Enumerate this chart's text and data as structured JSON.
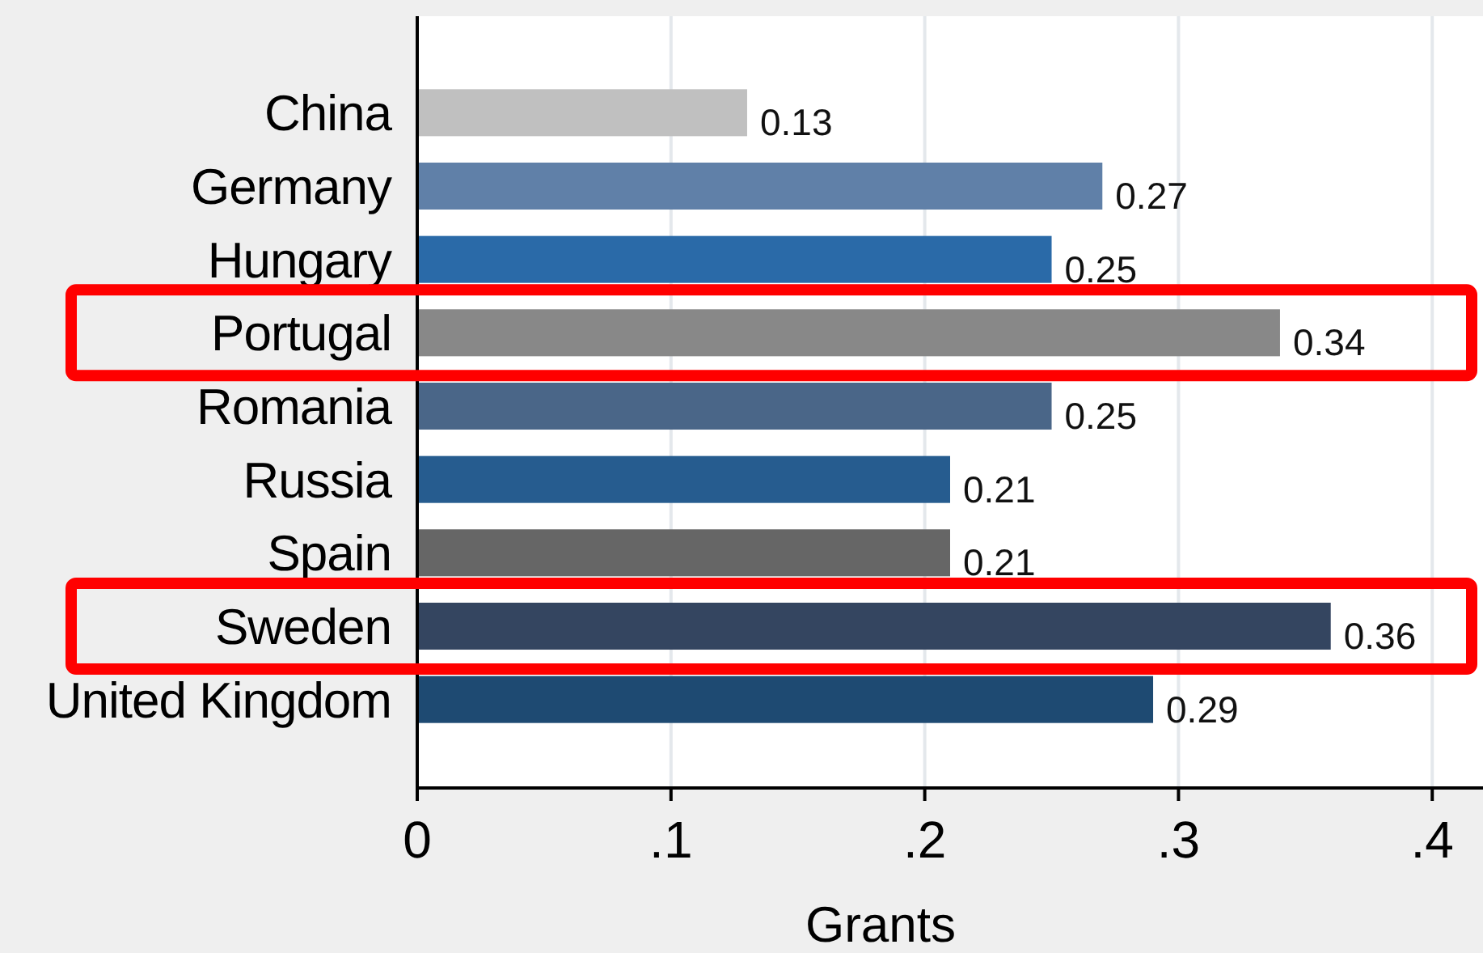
{
  "chart_data": {
    "type": "bar",
    "orientation": "horizontal",
    "xlabel": "Grants",
    "categories": [
      "China",
      "Germany",
      "Hungary",
      "Portugal",
      "Romania",
      "Russia",
      "Spain",
      "Sweden",
      "United Kingdom"
    ],
    "values": [
      0.13,
      0.27,
      0.25,
      0.34,
      0.25,
      0.21,
      0.21,
      0.36,
      0.29
    ],
    "colors": [
      "#c0c0c0",
      "#6080a8",
      "#2a6aa8",
      "#888888",
      "#4a6688",
      "#265c8f",
      "#666666",
      "#344560",
      "#1e4a72"
    ],
    "data_labels": true,
    "xlim": [
      0,
      0.42
    ],
    "xticks": [
      0,
      {
        "value": 0.1,
        "label": ".1"
      },
      {
        "value": 0.2,
        "label": ".2"
      },
      {
        "value": 0.3,
        "label": ".3"
      },
      {
        "value": 0.4,
        "label": ".4"
      }
    ],
    "grid": "x"
  }
}
